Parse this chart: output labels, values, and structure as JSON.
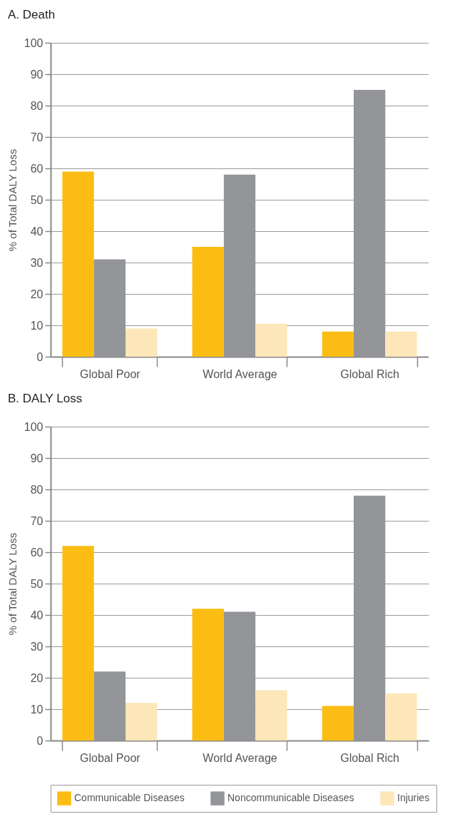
{
  "chart_data": [
    {
      "type": "bar",
      "title": "A. Death",
      "ylabel": "% of Total DALY Loss",
      "categories": [
        "Global Poor",
        "World Average",
        "Global Rich"
      ],
      "series": [
        {
          "color": "#fbbd13",
          "values": [
            59,
            35,
            8
          ]
        },
        {
          "color": "#939598",
          "values": [
            31,
            58,
            85
          ]
        },
        {
          "color": "#fde6b8",
          "values": [
            9,
            10.5,
            8
          ]
        }
      ],
      "ylim": [
        0,
        100
      ],
      "yticks": [
        0,
        10,
        20,
        30,
        40,
        50,
        60,
        70,
        80,
        90,
        100
      ],
      "grid": "y",
      "legend": false
    },
    {
      "type": "bar",
      "title": "B. DALY Loss",
      "ylabel": "% of Total DALY Loss",
      "categories": [
        "Global Poor",
        "World Average",
        "Global Rich"
      ],
      "series": [
        {
          "name": "Communicable Diseases",
          "color": "#fbbd13",
          "values": [
            62,
            42,
            11
          ]
        },
        {
          "name": "Noncommunicable Diseases",
          "color": "#939598",
          "values": [
            22,
            41,
            78
          ]
        },
        {
          "name": "Injuries",
          "color": "#fde6b8",
          "values": [
            12,
            16,
            15
          ]
        }
      ],
      "ylim": [
        0,
        100
      ],
      "yticks": [
        0,
        10,
        20,
        30,
        40,
        50,
        60,
        70,
        80,
        90,
        100
      ],
      "grid": "y",
      "legend": "bottom"
    }
  ]
}
